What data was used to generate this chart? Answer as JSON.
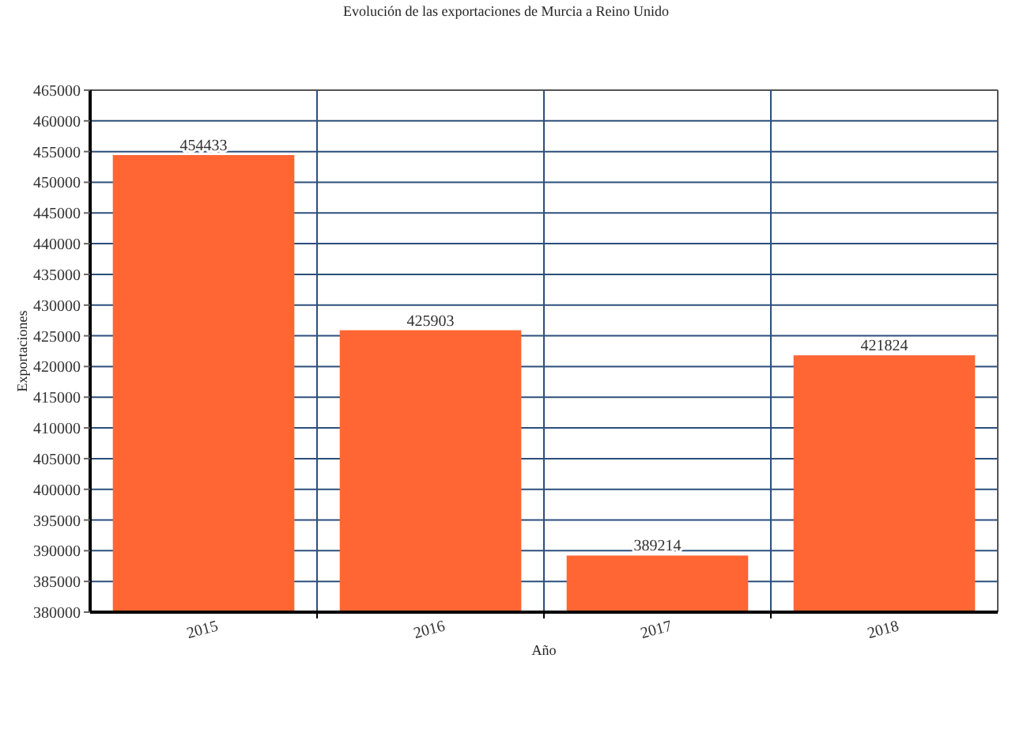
{
  "chart_data": {
    "type": "bar",
    "title": "Evolución de las exportaciones de Murcia a Reino Unido",
    "xlabel": "Año",
    "ylabel": "Exportaciones",
    "categories": [
      "2015",
      "2016",
      "2017",
      "2018"
    ],
    "values": [
      454433,
      425903,
      389214,
      421824
    ],
    "color": "#ff6633",
    "ylim": [
      380000,
      465000
    ],
    "yticks": [
      380000,
      385000,
      390000,
      395000,
      400000,
      405000,
      410000,
      415000,
      420000,
      425000,
      430000,
      435000,
      440000,
      445000,
      450000,
      455000,
      460000,
      465000
    ],
    "grid": true,
    "data_labels": true
  }
}
